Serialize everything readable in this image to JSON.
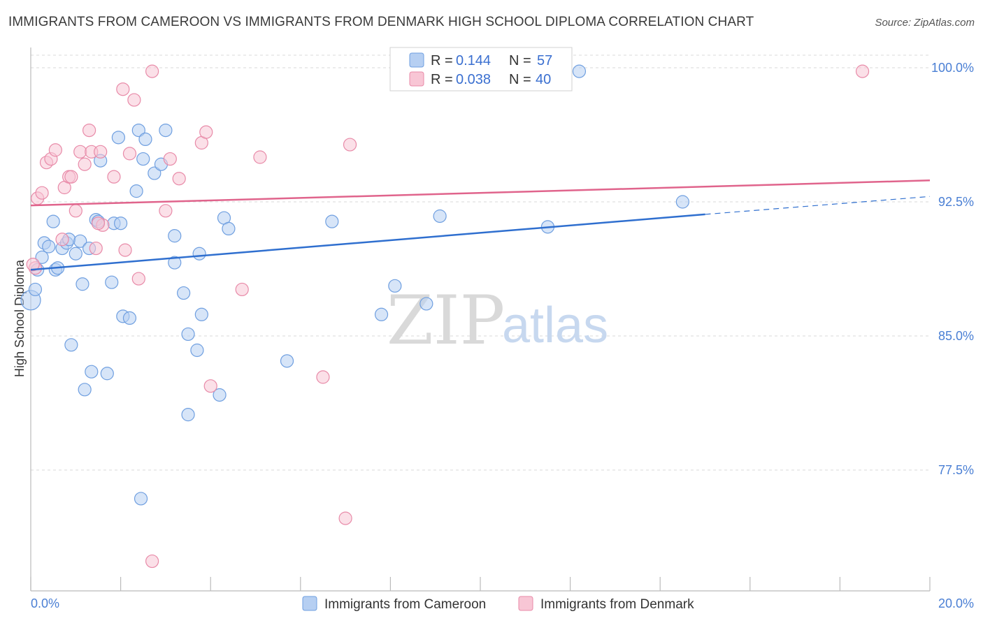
{
  "title": "IMMIGRANTS FROM CAMEROON VS IMMIGRANTS FROM DENMARK HIGH SCHOOL DIPLOMA CORRELATION CHART",
  "source": "Source: ZipAtlas.com",
  "watermark": {
    "zip": "ZIP",
    "atlas": "atlas"
  },
  "legend": {
    "r_label": "R =",
    "n_label": "N =",
    "rows": [
      {
        "r": "0.144",
        "n": "57"
      },
      {
        "r": "0.038",
        "n": "40"
      }
    ]
  },
  "colors": {
    "cameroon_fill": "#b6cff2",
    "cameroon_stroke": "#6f9fe0",
    "cameroon_line": "#2f6fcf",
    "denmark_fill": "#f8c6d5",
    "denmark_stroke": "#e88aa8",
    "denmark_line": "#e0648c",
    "tick_label": "#4a7fd4",
    "grid": "#d8d8d8"
  },
  "chart_data": {
    "type": "scatter",
    "title": "IMMIGRANTS FROM CAMEROON VS IMMIGRANTS FROM DENMARK HIGH SCHOOL DIPLOMA CORRELATION CHART",
    "xlabel": "",
    "ylabel": "High School Diploma",
    "xlim": [
      0.0,
      20.0
    ],
    "ylim": [
      70.5,
      101.0
    ],
    "x_tick_labels": [
      "0.0%",
      "20.0%"
    ],
    "y_ticks": [
      77.5,
      85.0,
      92.5,
      100.0
    ],
    "y_tick_labels": [
      "77.5%",
      "85.0%",
      "92.5%",
      "100.0%"
    ],
    "grid": "horizontal dashed",
    "legend_position": "top-center",
    "series": [
      {
        "name": "Immigrants from Cameroon",
        "r": 0.144,
        "n": 57,
        "trend": {
          "x": [
            0.0,
            15.0
          ],
          "y": [
            88.7,
            91.8
          ],
          "dashed_extension": {
            "x": [
              15.0,
              20.0
            ],
            "y": [
              91.8,
              92.8
            ]
          }
        },
        "points": [
          [
            0.0,
            87.0
          ],
          [
            0.1,
            87.6
          ],
          [
            0.15,
            88.7
          ],
          [
            0.25,
            89.4
          ],
          [
            0.3,
            90.2
          ],
          [
            0.4,
            90.0
          ],
          [
            0.5,
            91.4
          ],
          [
            0.55,
            88.7
          ],
          [
            0.6,
            88.8
          ],
          [
            0.7,
            89.9
          ],
          [
            0.8,
            90.2
          ],
          [
            0.85,
            90.4
          ],
          [
            1.0,
            89.6
          ],
          [
            1.1,
            90.3
          ],
          [
            1.15,
            87.9
          ],
          [
            1.3,
            89.9
          ],
          [
            1.45,
            91.5
          ],
          [
            1.5,
            91.4
          ],
          [
            1.55,
            94.8
          ],
          [
            1.8,
            88.0
          ],
          [
            1.85,
            91.3
          ],
          [
            1.95,
            96.1
          ],
          [
            2.0,
            91.3
          ],
          [
            2.05,
            86.1
          ],
          [
            2.2,
            86.0
          ],
          [
            2.35,
            93.1
          ],
          [
            2.4,
            96.5
          ],
          [
            2.5,
            94.9
          ],
          [
            2.55,
            96.0
          ],
          [
            2.75,
            94.1
          ],
          [
            2.9,
            94.6
          ],
          [
            3.0,
            96.5
          ],
          [
            3.2,
            90.6
          ],
          [
            3.2,
            89.1
          ],
          [
            3.4,
            87.4
          ],
          [
            3.5,
            85.1
          ],
          [
            3.7,
            84.2
          ],
          [
            3.75,
            89.6
          ],
          [
            3.8,
            86.2
          ],
          [
            4.3,
            91.6
          ],
          [
            4.4,
            91.0
          ],
          [
            0.9,
            84.5
          ],
          [
            1.35,
            83.0
          ],
          [
            1.7,
            82.9
          ],
          [
            1.2,
            82.0
          ],
          [
            3.5,
            80.6
          ],
          [
            4.2,
            81.7
          ],
          [
            2.45,
            75.9
          ],
          [
            5.7,
            83.6
          ],
          [
            6.7,
            91.4
          ],
          [
            7.8,
            86.2
          ],
          [
            8.1,
            87.8
          ],
          [
            8.8,
            86.8
          ],
          [
            9.1,
            91.7
          ],
          [
            11.5,
            91.1
          ],
          [
            12.2,
            99.8
          ],
          [
            14.5,
            92.5
          ]
        ]
      },
      {
        "name": "Immigrants from Denmark",
        "r": 0.038,
        "n": 40,
        "trend": {
          "x": [
            0.0,
            20.0
          ],
          "y": [
            92.3,
            93.7
          ]
        },
        "points": [
          [
            0.1,
            88.8
          ],
          [
            0.15,
            92.7
          ],
          [
            0.25,
            93.0
          ],
          [
            0.35,
            94.7
          ],
          [
            0.45,
            94.9
          ],
          [
            0.55,
            95.4
          ],
          [
            0.7,
            90.4
          ],
          [
            0.75,
            93.3
          ],
          [
            0.85,
            93.9
          ],
          [
            0.9,
            93.9
          ],
          [
            1.0,
            92.0
          ],
          [
            1.1,
            95.3
          ],
          [
            1.2,
            94.6
          ],
          [
            1.3,
            96.5
          ],
          [
            1.35,
            95.3
          ],
          [
            1.45,
            89.9
          ],
          [
            1.55,
            95.3
          ],
          [
            1.6,
            91.2
          ],
          [
            1.85,
            93.9
          ],
          [
            2.05,
            98.8
          ],
          [
            2.1,
            89.8
          ],
          [
            2.2,
            95.2
          ],
          [
            2.3,
            98.2
          ],
          [
            2.4,
            88.2
          ],
          [
            2.7,
            99.8
          ],
          [
            3.1,
            94.9
          ],
          [
            3.0,
            92.0
          ],
          [
            3.3,
            93.8
          ],
          [
            3.8,
            95.8
          ],
          [
            3.9,
            96.4
          ],
          [
            4.0,
            82.2
          ],
          [
            4.7,
            87.6
          ],
          [
            5.1,
            95.0
          ],
          [
            6.5,
            82.7
          ],
          [
            7.0,
            74.8
          ],
          [
            7.1,
            95.7
          ],
          [
            2.7,
            72.4
          ],
          [
            0.05,
            89.0
          ],
          [
            1.5,
            91.3
          ],
          [
            18.5,
            99.8
          ]
        ]
      }
    ]
  },
  "bottom_legend": [
    {
      "label": "Immigrants from Cameroon"
    },
    {
      "label": "Immigrants from Denmark"
    }
  ]
}
